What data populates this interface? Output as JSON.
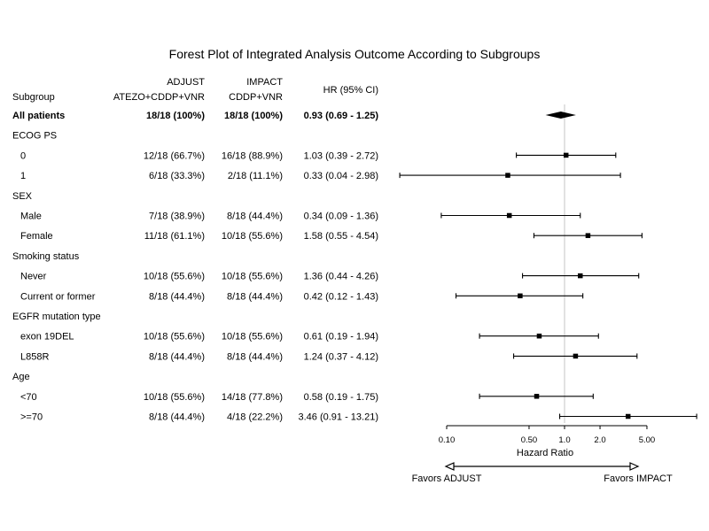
{
  "chart_data": {
    "type": "forest",
    "title": "Forest Plot of Integrated Analysis Outcome According to Subgroups",
    "columns": {
      "subgroup": "Subgroup",
      "adjust": [
        "ADJUST",
        "ATEZO+CDDP+VNR"
      ],
      "impact": [
        "IMPACT",
        "CDDP+VNR"
      ],
      "hr": "HR (95% CI)"
    },
    "rows": [
      {
        "label": "All patients",
        "kind": "overall",
        "adjust": "18/18 (100%)",
        "impact": "18/18 (100%)",
        "hr_text": "0.93 (0.69 - 1.25)",
        "hr": 0.93,
        "lo": 0.69,
        "hi": 1.25
      },
      {
        "label": "ECOG PS",
        "kind": "header"
      },
      {
        "label": "0",
        "kind": "item",
        "adjust": "12/18 (66.7%)",
        "impact": "16/18 (88.9%)",
        "hr_text": "1.03 (0.39 - 2.72)",
        "hr": 1.03,
        "lo": 0.39,
        "hi": 2.72
      },
      {
        "label": "1",
        "kind": "item",
        "adjust": "6/18 (33.3%)",
        "impact": "2/18 (11.1%)",
        "hr_text": "0.33 (0.04 - 2.98)",
        "hr": 0.33,
        "lo": 0.04,
        "hi": 2.98
      },
      {
        "label": "SEX",
        "kind": "header"
      },
      {
        "label": "Male",
        "kind": "item",
        "adjust": "7/18 (38.9%)",
        "impact": "8/18 (44.4%)",
        "hr_text": "0.34 (0.09 - 1.36)",
        "hr": 0.34,
        "lo": 0.09,
        "hi": 1.36
      },
      {
        "label": "Female",
        "kind": "item",
        "adjust": "11/18 (61.1%)",
        "impact": "10/18 (55.6%)",
        "hr_text": "1.58 (0.55 - 4.54)",
        "hr": 1.58,
        "lo": 0.55,
        "hi": 4.54
      },
      {
        "label": "Smoking status",
        "kind": "header"
      },
      {
        "label": "Never",
        "kind": "item",
        "adjust": "10/18 (55.6%)",
        "impact": "10/18 (55.6%)",
        "hr_text": "1.36 (0.44 - 4.26)",
        "hr": 1.36,
        "lo": 0.44,
        "hi": 4.26
      },
      {
        "label": "Current or former",
        "kind": "item",
        "adjust": "8/18 (44.4%)",
        "impact": "8/18 (44.4%)",
        "hr_text": "0.42 (0.12 - 1.43)",
        "hr": 0.42,
        "lo": 0.12,
        "hi": 1.43
      },
      {
        "label": "EGFR mutation type",
        "kind": "header"
      },
      {
        "label": "exon 19DEL",
        "kind": "item",
        "adjust": "10/18 (55.6%)",
        "impact": "10/18 (55.6%)",
        "hr_text": "0.61 (0.19 - 1.94)",
        "hr": 0.61,
        "lo": 0.19,
        "hi": 1.94
      },
      {
        "label": "L858R",
        "kind": "item",
        "adjust": "8/18 (44.4%)",
        "impact": "8/18 (44.4%)",
        "hr_text": "1.24 (0.37 - 4.12)",
        "hr": 1.24,
        "lo": 0.37,
        "hi": 4.12
      },
      {
        "label": "Age",
        "kind": "header"
      },
      {
        "label": "<70",
        "kind": "item",
        "adjust": "10/18 (55.6%)",
        "impact": "14/18 (77.8%)",
        "hr_text": "0.58 (0.19 - 1.75)",
        "hr": 0.58,
        "lo": 0.19,
        "hi": 1.75
      },
      {
        "label": ">=70",
        "kind": "item",
        "adjust": "8/18 (44.4%)",
        "impact": "4/18 (22.2%)",
        "hr_text": "3.46 (0.91 - 13.21)",
        "hr": 3.46,
        "lo": 0.91,
        "hi": 13.21
      }
    ],
    "x_axis": {
      "label": "Hazard Ratio",
      "scale": "log",
      "ticks": [
        0.1,
        0.5,
        1.0,
        2.0,
        5.0
      ],
      "tick_labels": [
        "0.10",
        "0.50",
        "1.0",
        "2.0",
        "5.00"
      ],
      "reference_line": 1.0
    },
    "favors": {
      "left": "Favors ADJUST",
      "right": "Favors IMPACT"
    },
    "colors": {
      "marks": "#000000",
      "reference_line": "#d9d9d9",
      "background": "#ffffff"
    }
  }
}
